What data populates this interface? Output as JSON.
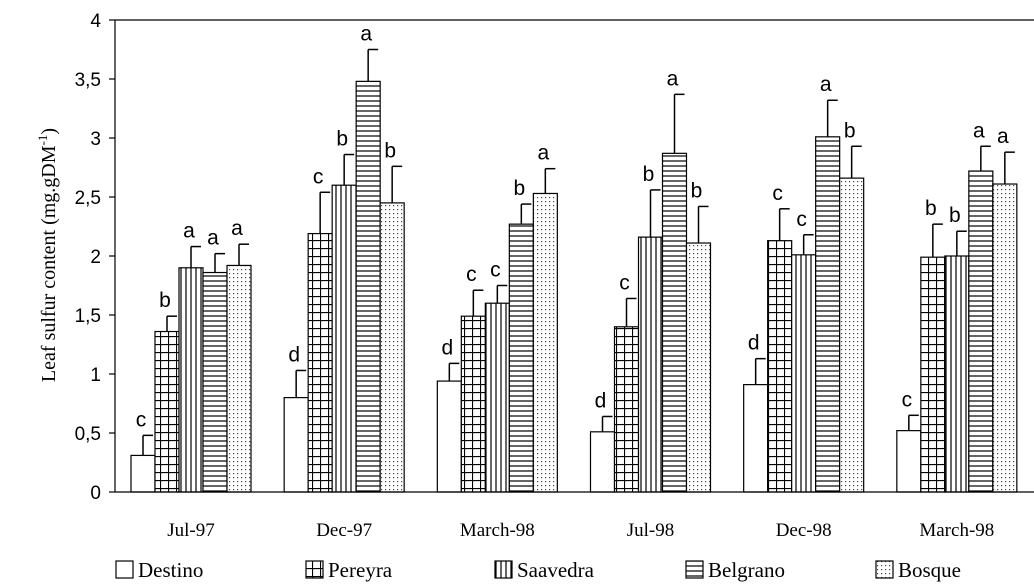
{
  "chart_data": {
    "type": "bar",
    "ylabel_main": "Leaf sulfur content (mg.gDM",
    "ylabel_sup": "-1",
    "ylabel_close": ")",
    "ylim": [
      0,
      4
    ],
    "yticks": [
      "0",
      "0,5",
      "1",
      "1,5",
      "2",
      "2,5",
      "3",
      "3,5",
      "4"
    ],
    "ytick_values": [
      0,
      0.5,
      1,
      1.5,
      2,
      2.5,
      3,
      3.5,
      4
    ],
    "categories": [
      "Jul-97",
      "Dec-97",
      "March-98",
      "Jul-98",
      "Dec-98",
      "March-98"
    ],
    "legend_position": "bottom",
    "grid": false,
    "series": [
      {
        "name": "Destino",
        "pattern": "blank",
        "values": [
          0.31,
          0.8,
          0.94,
          0.51,
          0.91,
          0.52
        ],
        "errors": [
          0.17,
          0.23,
          0.15,
          0.13,
          0.22,
          0.13
        ],
        "letters": [
          "c",
          "d",
          "d",
          "d",
          "d",
          "c"
        ]
      },
      {
        "name": "Pereyra",
        "pattern": "grid",
        "values": [
          1.36,
          2.19,
          1.49,
          1.4,
          2.13,
          1.99
        ],
        "errors": [
          0.13,
          0.35,
          0.22,
          0.24,
          0.27,
          0.28
        ],
        "letters": [
          "b",
          "c",
          "c",
          "c",
          "c",
          "b"
        ]
      },
      {
        "name": "Saavedra",
        "pattern": "vertical",
        "values": [
          1.9,
          2.6,
          1.6,
          2.16,
          2.01,
          2.0
        ],
        "errors": [
          0.18,
          0.26,
          0.15,
          0.4,
          0.17,
          0.21
        ],
        "letters": [
          "a",
          "b",
          "c",
          "b",
          "c",
          "b"
        ]
      },
      {
        "name": "Belgrano",
        "pattern": "horizontal",
        "values": [
          1.86,
          3.48,
          2.27,
          2.87,
          3.01,
          2.72
        ],
        "errors": [
          0.16,
          0.27,
          0.17,
          0.5,
          0.31,
          0.21
        ],
        "letters": [
          "a",
          "a",
          "b",
          "a",
          "a",
          "a"
        ]
      },
      {
        "name": "Bosque",
        "pattern": "dots",
        "values": [
          1.92,
          2.45,
          2.53,
          2.11,
          2.66,
          2.61
        ],
        "errors": [
          0.18,
          0.31,
          0.21,
          0.31,
          0.27,
          0.27
        ],
        "letters": [
          "a",
          "b",
          "a",
          "b",
          "b",
          "a"
        ]
      }
    ]
  }
}
